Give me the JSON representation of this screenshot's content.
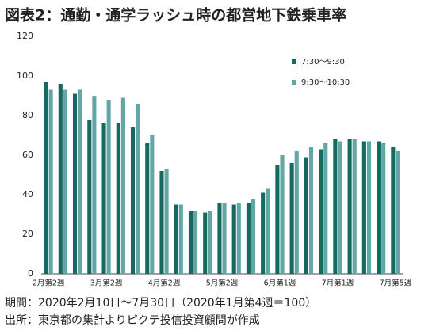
{
  "chart_data": {
    "type": "bar",
    "title": "図表2：通勤・通学ラッシュ時の都営地下鉄乗車率",
    "notes": [
      "期間：2020年2月10日～7月30日（2020年1月第4週＝100）",
      "出所：東京都の集計よりピクテ投信投資顧問が作成"
    ],
    "categories": [
      "2月第2週",
      null,
      null,
      null,
      "3月第2週",
      null,
      null,
      null,
      "4月第2週",
      null,
      null,
      null,
      "5月第2週",
      null,
      null,
      null,
      "6月第1週",
      null,
      null,
      null,
      "7月第1週",
      null,
      null,
      null,
      "7月第5週"
    ],
    "series": [
      {
        "name": "7:30～9:30",
        "color": "#17695f",
        "values": [
          97,
          96,
          91,
          78,
          76,
          76,
          74,
          66,
          52,
          35,
          32,
          31,
          36,
          35,
          36,
          41,
          55,
          56,
          59,
          63,
          68,
          68,
          67,
          67,
          64
        ]
      },
      {
        "name": "9:30～10:30",
        "color": "#62a6a6",
        "values": [
          93,
          93,
          93,
          90,
          88,
          89,
          86,
          70,
          53,
          35,
          32,
          32,
          36,
          36,
          38,
          43,
          60,
          62,
          64,
          66,
          67,
          68,
          67,
          66,
          62
        ]
      }
    ],
    "ylim": [
      0,
      120
    ],
    "yticks": [
      0,
      20,
      40,
      60,
      80,
      100,
      120
    ],
    "grid": false,
    "legend": "upper right"
  }
}
